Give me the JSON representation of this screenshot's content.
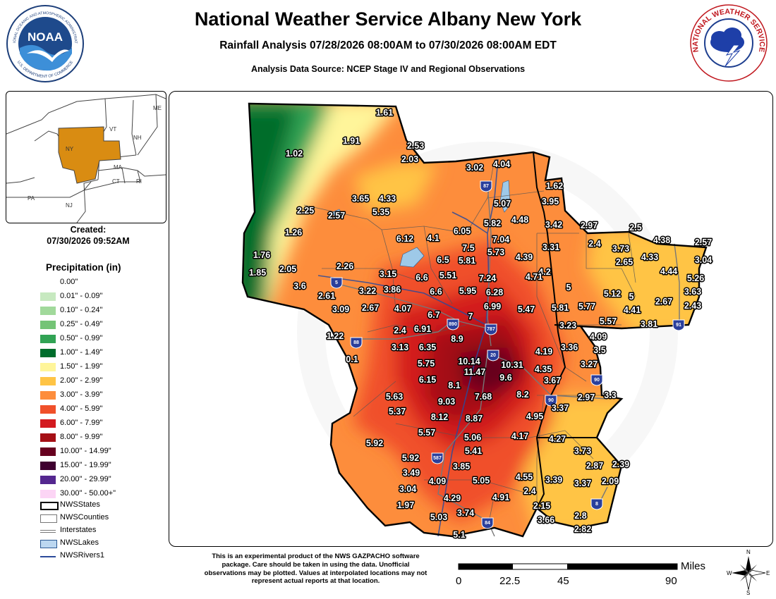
{
  "header": {
    "title": "National Weather Service Albany New York",
    "subtitle": "Rainfall Analysis 07/28/2026 08:00AM to 07/30/2026 08:00AM EDT",
    "source": "Analysis Data Source: NCEP Stage IV and Regional Observations"
  },
  "logos": {
    "noaa_text": "NOAA",
    "noaa_ring_top": "NATIONAL OCEANIC AND ATMOSPHERIC ADMINISTRATION",
    "noaa_ring_bottom": "U.S. DEPARTMENT OF COMMERCE",
    "nws_ring": "NATIONAL WEATHER SERVICE"
  },
  "inset": {
    "labels": [
      "ME",
      "VT",
      "NH",
      "NY",
      "MA",
      "CT",
      "RI",
      "PA",
      "NJ"
    ]
  },
  "created": {
    "label": "Created:",
    "value": "07/30/2026 09:52AM"
  },
  "legend": {
    "title": "Precipitation (in)",
    "items": [
      {
        "label": "0.00\"",
        "color": "#ffffff"
      },
      {
        "label": "0.01\" - 0.09\"",
        "color": "#c7e9c0"
      },
      {
        "label": "0.10\" - 0.24\"",
        "color": "#a1d99b"
      },
      {
        "label": "0.25\" - 0.49\"",
        "color": "#74c476"
      },
      {
        "label": "0.50\" - 0.99\"",
        "color": "#31a354"
      },
      {
        "label": "1.00\" - 1.49\"",
        "color": "#006d2c"
      },
      {
        "label": "1.50\" - 1.99\"",
        "color": "#fff59a"
      },
      {
        "label": "2.00\" - 2.99\"",
        "color": "#ffc445"
      },
      {
        "label": "3.00\" - 3.99\"",
        "color": "#fd8d3c"
      },
      {
        "label": "4.00\" - 5.99\"",
        "color": "#f0502a"
      },
      {
        "label": "6.00\" - 7.99\"",
        "color": "#d31a1f"
      },
      {
        "label": "8.00\" - 9.99\"",
        "color": "#a50f15"
      },
      {
        "label": "10.00\" - 14.99\"",
        "color": "#67001f"
      },
      {
        "label": "15.00\" - 19.99\"",
        "color": "#3f0030"
      },
      {
        "label": "20.00\" - 29.99\"",
        "color": "#54278f"
      },
      {
        "label": "30.00\" - 50.00+\"",
        "color": "#fcd5f5"
      }
    ]
  },
  "layers": [
    {
      "label": "NWSStates",
      "style": "states"
    },
    {
      "label": "NWSCounties",
      "style": "counties"
    },
    {
      "label": "Interstates",
      "style": "interstates"
    },
    {
      "label": "NWSLakes",
      "style": "lakes"
    },
    {
      "label": "NWSRivers1",
      "style": "rivers"
    }
  ],
  "map": {
    "shields": [
      "87",
      "5",
      "890",
      "787",
      "88",
      "20",
      "90",
      "90",
      "587",
      "84",
      "91",
      "8"
    ],
    "values": [
      "1.61",
      "1.91",
      "1.02",
      "2.53",
      "2.03",
      "3.02",
      "4.04",
      "1.62",
      "3.65",
      "4.33",
      "5.35",
      "5.07",
      "3.95",
      "2.25",
      "2.57",
      "4.48",
      "5.82",
      "3.42",
      "2.97",
      "2.5",
      "1.26",
      "6.12",
      "4.1",
      "6.05",
      "7.04",
      "4.38",
      "2.57",
      "1.76",
      "7.5",
      "3.31",
      "2.4",
      "3.73",
      "6.5",
      "5.81",
      "5.73",
      "4.39",
      "2.05",
      "2.65",
      "4.33",
      "3.04",
      "1.85",
      "2.26",
      "5.51",
      "4.44",
      "3.15",
      "6.6",
      "7.24",
      "4.2",
      "4.71",
      "5.26",
      "3.6",
      "3.22",
      "3.86",
      "6.6",
      "5.95",
      "6.28",
      "5",
      "2.61",
      "5.12",
      "5",
      "3.63",
      "3.09",
      "2.67",
      "4.07",
      "6.99",
      "5.47",
      "5.81",
      "5.77",
      "4.41",
      "2.67",
      "2.43",
      "6.7",
      "7",
      "3.23",
      "5.57",
      "3.81",
      "1.22",
      "2.4",
      "6.91",
      "8.9",
      "4.09",
      "3.13",
      "6.35",
      "4.19",
      "3.36",
      "3.5",
      "0.1",
      "10.14",
      "10.31",
      "5.75",
      "4.35",
      "3.27",
      "11.47",
      "9.6",
      "6.15",
      "3.67",
      "8.1",
      "8.2",
      "2.97",
      "3.3",
      "5.63",
      "9.03",
      "7.68",
      "3.37",
      "5.37",
      "8.12",
      "8.87",
      "4.95",
      "5.57",
      "4.17",
      "5.06",
      "4.27",
      "5.92",
      "5.41",
      "3.73",
      "5.92",
      "2.87",
      "2.39",
      "3.49",
      "3.85",
      "4.09",
      "5.05",
      "4.55",
      "3.39",
      "3.37",
      "2.09",
      "3.04",
      "2.4",
      "4.29",
      "4.91",
      "2.15",
      "1.97",
      "3.74",
      "5.03",
      "2.8",
      "3.66",
      "2.82",
      "5.1"
    ]
  },
  "disclaimer": "This is an experimental product of the NWS GAZPACHO software package. Care should be taken in using the data. Unofficial observations may be plotted. Values at interpolated locations may not represent actual reports at that location.",
  "scale": {
    "ticks": [
      "0",
      "22.5",
      "45",
      "90"
    ],
    "unit": "Miles"
  },
  "compass": {
    "n": "N",
    "e": "E",
    "s": "S",
    "w": "W"
  },
  "watermark": "NATIONAL WEATHER SERVICE - U.S. DEPARTMENT OF COMMERCE"
}
